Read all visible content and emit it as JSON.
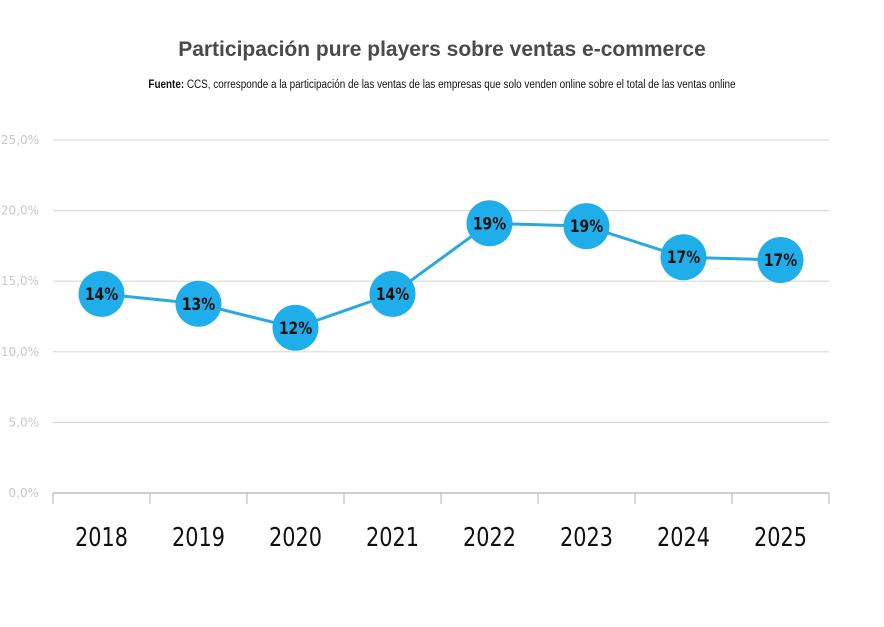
{
  "chart_data": {
    "type": "line",
    "title": "Participación pure players sobre ventas e-commerce",
    "subtitle_label": "Fuente:",
    "subtitle_text": " CCS, corresponde a la participación de las ventas de las empresas que solo venden online sobre el total de las ventas online",
    "xlabel": "",
    "ylabel": "",
    "categories": [
      "2018",
      "2019",
      "2020",
      "2021",
      "2022",
      "2023",
      "2024",
      "2025"
    ],
    "series": [
      {
        "name": "Participación pure players",
        "values": [
          14.1,
          13.4,
          11.7,
          14.1,
          19.1,
          18.9,
          16.7,
          16.5
        ],
        "labels": [
          "14%",
          "13%",
          "12%",
          "14%",
          "19%",
          "19%",
          "17%",
          "17%"
        ]
      }
    ],
    "ylim": [
      0,
      25
    ],
    "yticks": [
      0,
      5,
      10,
      15,
      20,
      25
    ],
    "ytick_labels": [
      "0,0%",
      "5,0%",
      "10,0%",
      "15,0%",
      "20,0%",
      "25,0%"
    ],
    "grid": true,
    "legend": "none",
    "colors": {
      "line": "#29a9e0",
      "marker": "#1faeea",
      "grid": "#d9d9d9",
      "axis": "#bfbfbf"
    }
  }
}
